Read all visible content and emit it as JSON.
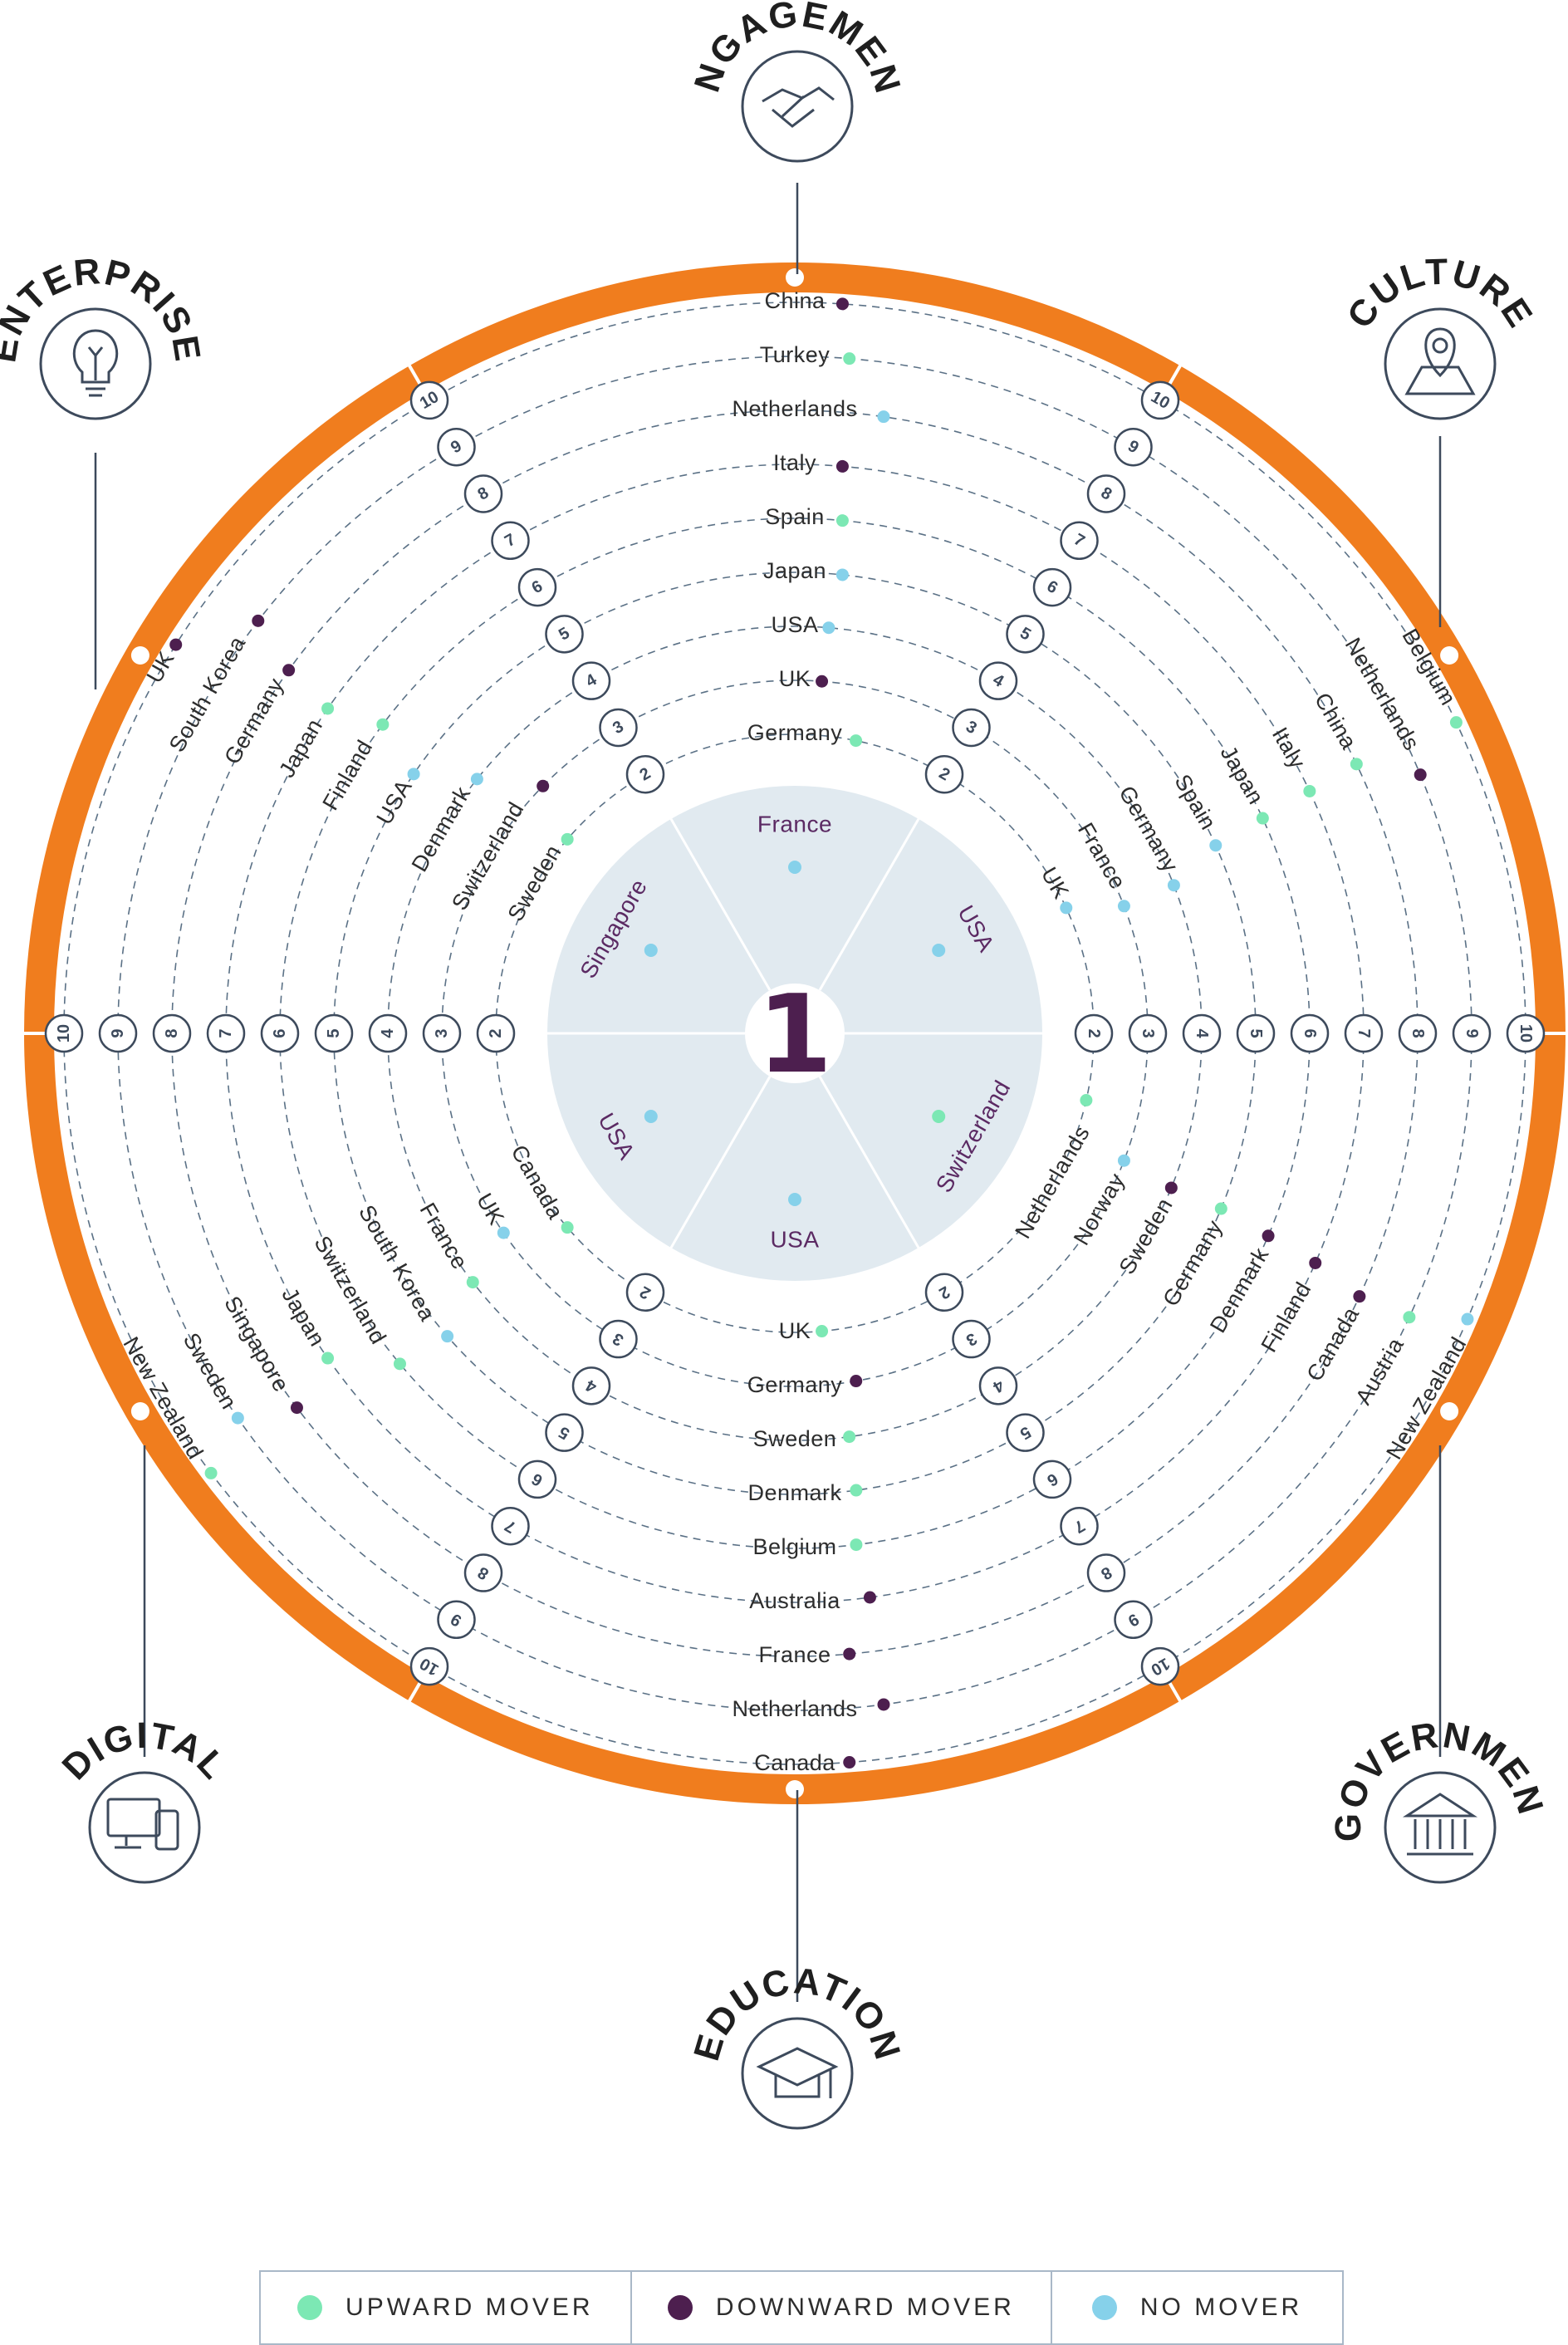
{
  "colors": {
    "ring": "#f07d1e",
    "upward": "#7ce8b4",
    "downward": "#4d1f4f",
    "no_mover": "#86d1ea",
    "center_fill": "#e1eaf0",
    "dashed": "#5b7186",
    "icon_stroke": "#3d4a5c",
    "first_text": "#5b2a63"
  },
  "center": {
    "rank": "1",
    "leaders": [
      {
        "pillar": "ENGAGEMENT",
        "country": "France",
        "status": "no_mover"
      },
      {
        "pillar": "CULTURE",
        "country": "USA",
        "status": "no_mover"
      },
      {
        "pillar": "GOVERNMENT",
        "country": "Switzerland",
        "status": "upward"
      },
      {
        "pillar": "EDUCATION",
        "country": "USA",
        "status": "no_mover"
      },
      {
        "pillar": "DIGITAL",
        "country": "USA",
        "status": "no_mover"
      },
      {
        "pillar": "ENTERPRISE",
        "country": "Singapore",
        "status": "no_mover"
      }
    ]
  },
  "ranks": [
    "2",
    "3",
    "4",
    "5",
    "6",
    "7",
    "8",
    "9",
    "10"
  ],
  "pillars": [
    {
      "id": "engagement",
      "title": "ENGAGEMENT",
      "icon": "handshake-icon",
      "rankings": [
        {
          "rank": 2,
          "country": "Germany",
          "status": "upward"
        },
        {
          "rank": 3,
          "country": "UK",
          "status": "downward"
        },
        {
          "rank": 4,
          "country": "USA",
          "status": "no_mover"
        },
        {
          "rank": 5,
          "country": "Japan",
          "status": "no_mover"
        },
        {
          "rank": 6,
          "country": "Spain",
          "status": "upward"
        },
        {
          "rank": 7,
          "country": "Italy",
          "status": "downward"
        },
        {
          "rank": 8,
          "country": "Netherlands",
          "status": "no_mover"
        },
        {
          "rank": 9,
          "country": "Turkey",
          "status": "upward"
        },
        {
          "rank": 10,
          "country": "China",
          "status": "downward"
        }
      ]
    },
    {
      "id": "culture",
      "title": "CULTURE",
      "icon": "map-pin-icon",
      "rankings": [
        {
          "rank": 2,
          "country": "UK",
          "status": "no_mover"
        },
        {
          "rank": 3,
          "country": "France",
          "status": "no_mover"
        },
        {
          "rank": 4,
          "country": "Germany",
          "status": "no_mover"
        },
        {
          "rank": 5,
          "country": "Spain",
          "status": "no_mover"
        },
        {
          "rank": 6,
          "country": "Japan",
          "status": "upward"
        },
        {
          "rank": 7,
          "country": "Italy",
          "status": "upward"
        },
        {
          "rank": 8,
          "country": "China",
          "status": "upward"
        },
        {
          "rank": 9,
          "country": "Netherlands",
          "status": "downward"
        },
        {
          "rank": 10,
          "country": "Belgium",
          "status": "upward"
        }
      ]
    },
    {
      "id": "government",
      "title": "GOVERNMENT",
      "icon": "government-building-icon",
      "rankings": [
        {
          "rank": 2,
          "country": "Netherlands",
          "status": "upward"
        },
        {
          "rank": 3,
          "country": "Norway",
          "status": "no_mover"
        },
        {
          "rank": 4,
          "country": "Sweden",
          "status": "downward"
        },
        {
          "rank": 5,
          "country": "Germany",
          "status": "upward"
        },
        {
          "rank": 6,
          "country": "Denmark",
          "status": "downward"
        },
        {
          "rank": 7,
          "country": "Finland",
          "status": "downward"
        },
        {
          "rank": 8,
          "country": "Canada",
          "status": "downward"
        },
        {
          "rank": 9,
          "country": "Austria",
          "status": "upward"
        },
        {
          "rank": 10,
          "country": "New Zealand",
          "status": "no_mover"
        }
      ]
    },
    {
      "id": "education",
      "title": "EDUCATION",
      "icon": "graduation-cap-icon",
      "rankings": [
        {
          "rank": 2,
          "country": "UK",
          "status": "upward"
        },
        {
          "rank": 3,
          "country": "Germany",
          "status": "downward"
        },
        {
          "rank": 4,
          "country": "Sweden",
          "status": "upward"
        },
        {
          "rank": 5,
          "country": "Denmark",
          "status": "upward"
        },
        {
          "rank": 6,
          "country": "Belgium",
          "status": "upward"
        },
        {
          "rank": 7,
          "country": "Australia",
          "status": "downward"
        },
        {
          "rank": 8,
          "country": "France",
          "status": "downward"
        },
        {
          "rank": 9,
          "country": "Netherlands",
          "status": "downward"
        },
        {
          "rank": 10,
          "country": "Canada",
          "status": "downward"
        }
      ]
    },
    {
      "id": "digital",
      "title": "DIGITAL",
      "icon": "devices-icon",
      "rankings": [
        {
          "rank": 2,
          "country": "Canada",
          "status": "upward"
        },
        {
          "rank": 3,
          "country": "UK",
          "status": "no_mover"
        },
        {
          "rank": 4,
          "country": "France",
          "status": "upward"
        },
        {
          "rank": 5,
          "country": "South Korea",
          "status": "no_mover"
        },
        {
          "rank": 6,
          "country": "Switzerland",
          "status": "upward"
        },
        {
          "rank": 7,
          "country": "Japan",
          "status": "upward"
        },
        {
          "rank": 8,
          "country": "Singapore",
          "status": "downward"
        },
        {
          "rank": 9,
          "country": "Sweden",
          "status": "no_mover"
        },
        {
          "rank": 10,
          "country": "New Zealand",
          "status": "upward"
        }
      ]
    },
    {
      "id": "enterprise",
      "title": "ENTERPRISE",
      "icon": "lightbulb-icon",
      "rankings": [
        {
          "rank": 2,
          "country": "Sweden",
          "status": "upward"
        },
        {
          "rank": 3,
          "country": "Switzerland",
          "status": "downward"
        },
        {
          "rank": 4,
          "country": "Denmark",
          "status": "no_mover"
        },
        {
          "rank": 5,
          "country": "USA",
          "status": "no_mover"
        },
        {
          "rank": 6,
          "country": "Finland",
          "status": "upward"
        },
        {
          "rank": 7,
          "country": "Japan",
          "status": "upward"
        },
        {
          "rank": 8,
          "country": "Germany",
          "status": "downward"
        },
        {
          "rank": 9,
          "country": "South Korea",
          "status": "downward"
        },
        {
          "rank": 10,
          "country": "UK",
          "status": "downward"
        }
      ]
    }
  ],
  "legend": [
    {
      "label": "UPWARD MOVER",
      "status": "upward"
    },
    {
      "label": "DOWNWARD MOVER",
      "status": "downward"
    },
    {
      "label": "NO MOVER",
      "status": "no_mover"
    }
  ]
}
